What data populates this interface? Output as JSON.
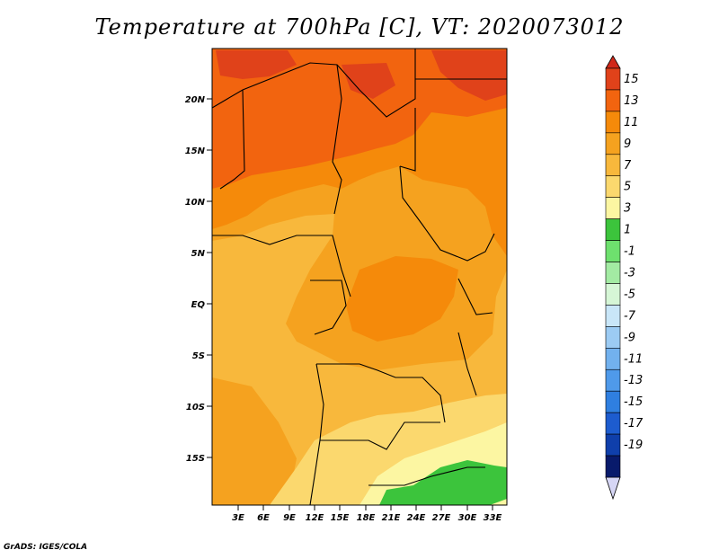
{
  "title": "Temperature at 700hPa [C], VT: 2020073012",
  "credit": "GrADS: IGES/COLA",
  "axes": {
    "lat_labels": [
      "20N",
      "15N",
      "10N",
      "5N",
      "EQ",
      "5S",
      "10S",
      "15S"
    ],
    "lon_labels": [
      "3E",
      "6E",
      "9E",
      "12E",
      "15E",
      "18E",
      "21E",
      "24E",
      "27E",
      "30E",
      "33E"
    ]
  },
  "colorbar": {
    "labels": [
      "15",
      "13",
      "11",
      "9",
      "7",
      "5",
      "3",
      "1",
      "-1",
      "-3",
      "-5",
      "-7",
      "-9",
      "-11",
      "-13",
      "-15",
      "-17",
      "-19"
    ],
    "colors": [
      "#e0421a",
      "#f2640f",
      "#f58a0a",
      "#f5a21f",
      "#f8b83c",
      "#fbd86e",
      "#fcf6a2",
      "#3cc43c",
      "#6ee06e",
      "#a3eba3",
      "#d6f6d6",
      "#c9e6f8",
      "#9ccbf3",
      "#72b1ee",
      "#4f9aea",
      "#2f7fe0",
      "#1d5ccf",
      "#0f3fab",
      "#081a6b"
    ],
    "top_color": "#d0281a",
    "bottom_color": "#d6d6f5"
  },
  "map": {
    "colors": {
      "t15": "#e0421a",
      "t13": "#f2640f",
      "t11": "#f58a0a",
      "t9": "#f5a21f",
      "t7": "#f8b83c",
      "t5": "#fbd86e",
      "t3": "#fcf6a2",
      "t1": "#3cc43c",
      "border": "#000000"
    }
  }
}
